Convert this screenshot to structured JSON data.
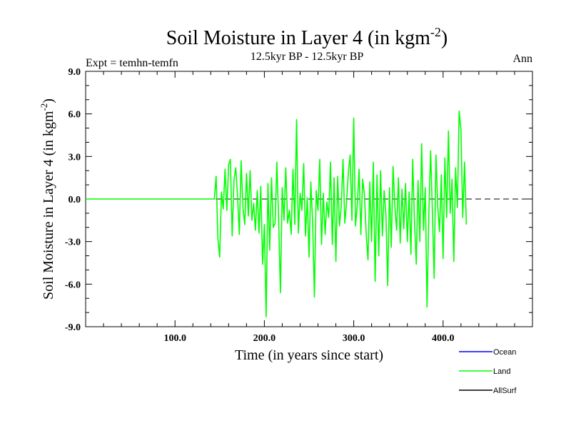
{
  "header": {
    "title_main": "Soil Moisture in Layer 4 (in kgm",
    "title_sup": "-2",
    "title_close": ")",
    "subtitle": "12.5kyr BP - 12.5kyr BP",
    "left_label": "Expt = temhn-temfn",
    "right_label": "Ann"
  },
  "chart_data": {
    "type": "line",
    "title": "Soil Moisture in Layer 4 (in kgm-2)",
    "xlabel": "Time (in years since start)",
    "ylabel_main": "Soil Moisture in Layer 4 (in kgm",
    "ylabel_sup": "-2",
    "ylabel_close": ")",
    "xlim": [
      0,
      500
    ],
    "ylim": [
      -9,
      9
    ],
    "x_ticks": [
      100,
      200,
      300,
      400
    ],
    "x_tick_labels": [
      "100.0",
      "200.0",
      "300.0",
      "400.0"
    ],
    "y_ticks": [
      -9,
      -6,
      -3,
      0,
      3,
      6,
      9
    ],
    "y_tick_labels": [
      "-9.0",
      "-6.0",
      "-3.0",
      "0.0",
      "3.0",
      "6.0",
      "9.0"
    ],
    "zero_line": "dashed",
    "legend": [
      {
        "name": "Ocean",
        "color": "#0000ff"
      },
      {
        "name": "Land",
        "color": "#00ff00"
      },
      {
        "name": "AllSurf",
        "color": "#000000"
      }
    ],
    "series": [
      {
        "name": "Land",
        "color": "#00ff00",
        "x_start": 0,
        "x_step": 2,
        "values": [
          0,
          0,
          0,
          0,
          0,
          0,
          0,
          0,
          0,
          0,
          0,
          0,
          0,
          0,
          0,
          0,
          0,
          0,
          0,
          0,
          0,
          0,
          0,
          0,
          0,
          0,
          0,
          0,
          0,
          0,
          0,
          0,
          0,
          0,
          0,
          0,
          0,
          0,
          0,
          0,
          0,
          0,
          0,
          0,
          0,
          0,
          0,
          0,
          0,
          0,
          0,
          0,
          0,
          0,
          0,
          0,
          0,
          0,
          0,
          0,
          0,
          0,
          0,
          0,
          0,
          0,
          0,
          0,
          0,
          0,
          0,
          0,
          0,
          1.6,
          -2.8,
          -4.1,
          0.5,
          -0.7,
          2.1,
          -0.8,
          2.4,
          2.8,
          -2.6,
          1.3,
          2.2,
          0.2,
          -2.5,
          2.7,
          -0.6,
          -1.8,
          1.8,
          -1.2,
          2.0,
          -1.5,
          -0.3,
          -2.2,
          0.6,
          -2.4,
          0.9,
          -4.6,
          -1.8,
          -8.3,
          1.1,
          -3.6,
          1.5,
          -2.0,
          -1.7,
          2.6,
          -1.5,
          -6.6,
          0.8,
          -1.5,
          2.2,
          -1.7,
          -0.8,
          -2.5,
          2.1,
          -1.8,
          5.6,
          -2.4,
          0.4,
          -0.8,
          2.5,
          -2.6,
          0.1,
          -4.1,
          1.2,
          -1.6,
          -6.9,
          0.6,
          -0.8,
          2.8,
          -3.2,
          0.4,
          -2.5,
          -0.2,
          -1.3,
          2.6,
          -3.2,
          1.5,
          -4.4,
          1.6,
          -1.9,
          -0.5,
          2.8,
          -1.7,
          -0.2,
          1.9,
          3.1,
          -1.5,
          5.7,
          -1.9,
          -0.4,
          2.1,
          -2.5,
          1.4,
          0.3,
          -2.5,
          -4.3,
          1.2,
          -3.0,
          2.6,
          -5.8,
          1.7,
          -4.0,
          2.0,
          -2.6,
          0.6,
          -1.1,
          -6.1,
          0.8,
          -3.4,
          2.3,
          -0.5,
          -2.2,
          1.5,
          -3.1,
          0.7,
          -2.1,
          1.1,
          -3.0,
          0.5,
          -3.9,
          2.8,
          -1.6,
          -4.6,
          1.3,
          -3.0,
          3.9,
          -2.2,
          0.8,
          -7.6,
          -1.1,
          3.4,
          -0.9,
          -5.6,
          3.1,
          -0.5,
          -2.3,
          1.7,
          -4.2,
          2.9,
          -1.3,
          4.8,
          -1.0,
          1.4,
          -4.4,
          2.2,
          -0.6,
          6.2,
          4.9,
          -1.3,
          2.6,
          -1.8
        ]
      }
    ]
  }
}
